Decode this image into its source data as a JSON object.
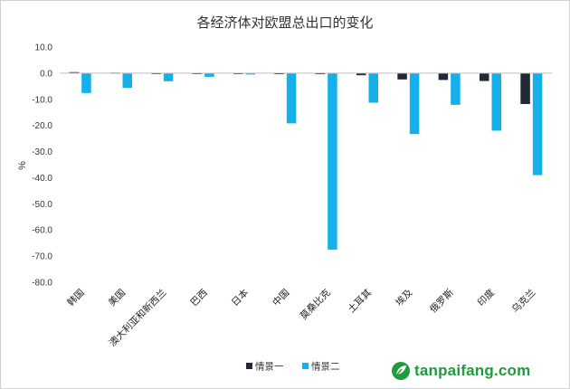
{
  "chart_data": {
    "type": "bar",
    "title": "各经济体对欧盟总出口的变化",
    "ylabel": "%",
    "ylim": [
      -80,
      10
    ],
    "yticks": [
      "10.0",
      "0.0",
      "-10.0",
      "-20.0",
      "-30.0",
      "-40.0",
      "-50.0",
      "-60.0",
      "-70.0",
      "-80.0"
    ],
    "categories": [
      "韩国",
      "美国",
      "澳大利亚和新西兰",
      "巴西",
      "日本",
      "中国",
      "莫桑比克",
      "土耳其",
      "埃及",
      "俄罗斯",
      "印度",
      "乌克兰"
    ],
    "series": [
      {
        "name": "情景一",
        "color": "#1f2a36",
        "values": [
          0.4,
          0.2,
          -0.3,
          -0.2,
          -0.3,
          -0.4,
          -0.4,
          -0.8,
          -2.4,
          -2.6,
          -3.0,
          -11.8
        ]
      },
      {
        "name": "情景二",
        "color": "#15b0ea",
        "values": [
          -7.6,
          -5.6,
          -3.1,
          -1.4,
          -0.5,
          -19.2,
          -67.5,
          -11.3,
          -23.3,
          -12.1,
          -22.0,
          -39.0
        ]
      }
    ],
    "legend_position": "bottom",
    "grid": false
  },
  "watermark": {
    "text": "tanpaifang.com",
    "icon": "leaf-logo-icon"
  }
}
